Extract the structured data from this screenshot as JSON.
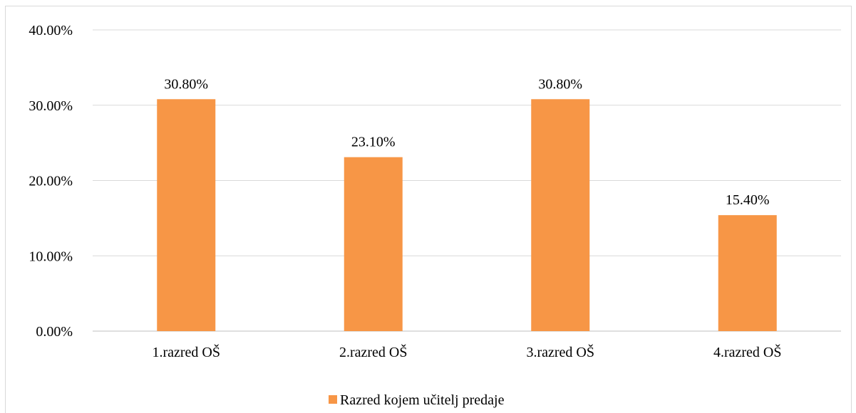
{
  "chart_data": {
    "type": "bar",
    "title": "",
    "xlabel": "",
    "ylabel": "",
    "categories": [
      "1.razred OŠ",
      "2.razred OŠ",
      "3.razred OŠ",
      "4.razred OŠ"
    ],
    "series": [
      {
        "name": "Razred kojem učitelj predaje",
        "values": [
          30.8,
          23.1,
          30.8,
          15.4
        ],
        "labels": [
          "30.80%",
          "23.10%",
          "30.80%",
          "15.40%"
        ]
      }
    ],
    "ylim": [
      0,
      40
    ],
    "yticks": [
      0,
      10,
      20,
      30,
      40
    ],
    "ytick_labels": [
      "0.00%",
      "10.00%",
      "20.00%",
      "30.00%",
      "40.00%"
    ],
    "grid": true,
    "legend_position": "bottom",
    "colors": {
      "bar": "#F79646",
      "grid": "#d9d9d9",
      "axis": "#bfbfbf"
    }
  }
}
